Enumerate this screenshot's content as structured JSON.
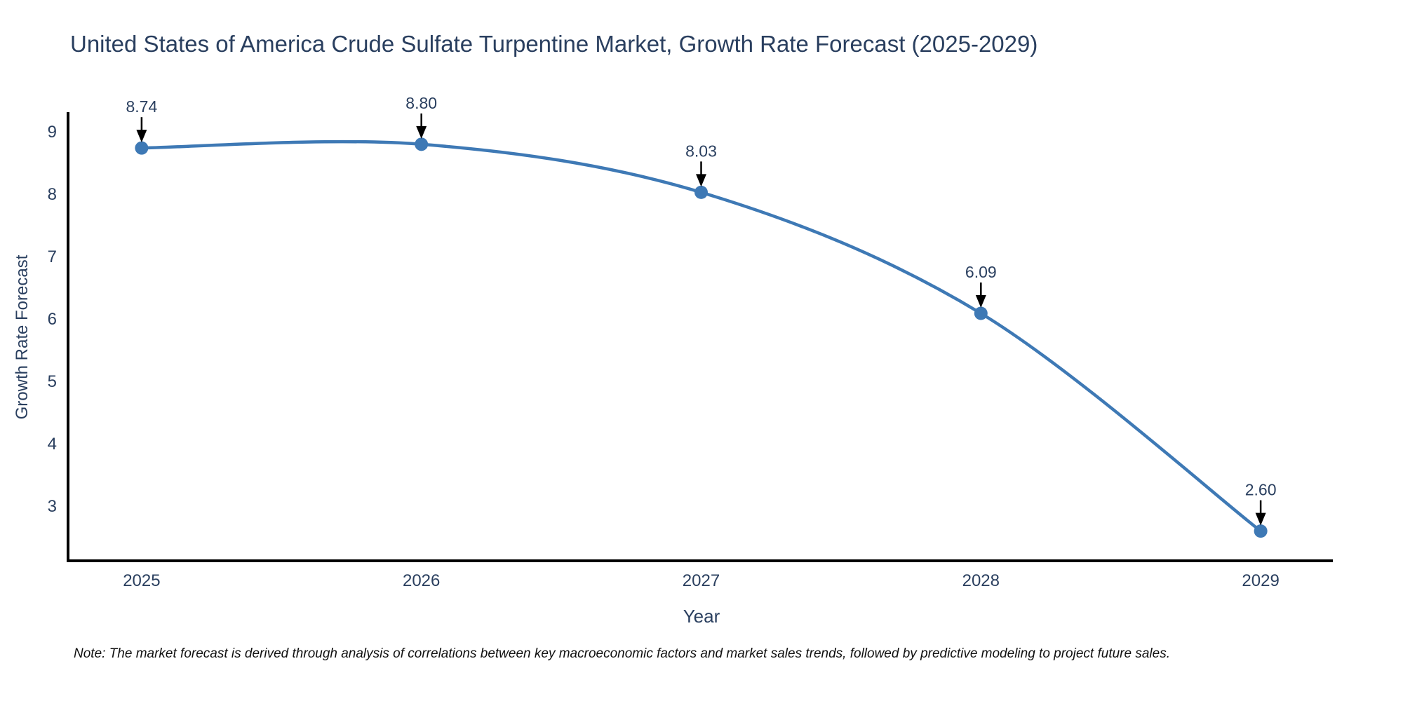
{
  "title": "United States of America Crude Sulfate Turpentine Market, Growth Rate Forecast (2025-2029)",
  "note": "Note: The market forecast is derived through analysis of correlations between key macroeconomic factors and market sales trends, followed by predictive modeling to project future sales.",
  "chart_data": {
    "type": "line",
    "title": "United States of America Crude Sulfate Turpentine Market, Growth Rate Forecast (2025-2029)",
    "xlabel": "Year",
    "ylabel": "Growth Rate Forecast",
    "x": [
      2025,
      2026,
      2027,
      2028,
      2029
    ],
    "y": [
      8.74,
      8.8,
      8.03,
      6.09,
      2.6
    ],
    "point_labels": [
      "8.74",
      "8.80",
      "8.03",
      "6.09",
      "2.60"
    ],
    "x_ticks": [
      2025,
      2026,
      2027,
      2028,
      2029
    ],
    "y_ticks": [
      9,
      8,
      7,
      6,
      5,
      4,
      3
    ],
    "xlim": [
      2024.737,
      2029.258
    ],
    "ylim": [
      2.124,
      9.315
    ],
    "line_shape": "spline",
    "grid": false,
    "legend": false,
    "annotations_arrow": "down",
    "colors": {
      "line": "#3E79B5",
      "marker": "#3E79B5",
      "axis": "#000000",
      "text": "#2a3f5f",
      "arrow": "#000000",
      "note_text": "#111111",
      "background": "#ffffff"
    }
  }
}
